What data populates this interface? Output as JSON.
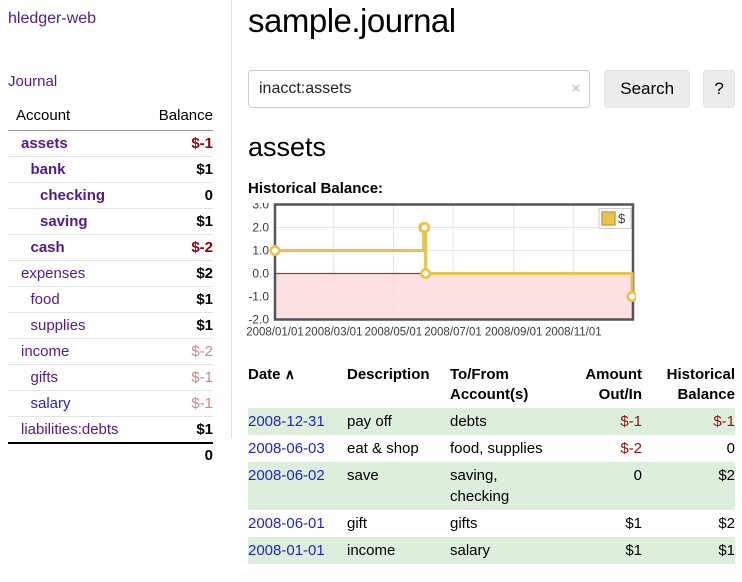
{
  "app": {
    "brand": "hledger-web",
    "nav_journal": "Journal"
  },
  "sidebar": {
    "headers": {
      "account": "Account",
      "balance": "Balance"
    },
    "accounts": [
      {
        "name": "assets",
        "depth": 0,
        "balance": "$-1",
        "emph": true,
        "neg": true,
        "blue": false
      },
      {
        "name": "bank",
        "depth": 1,
        "balance": "$1",
        "emph": true,
        "neg": false,
        "blue": false
      },
      {
        "name": "checking",
        "depth": 2,
        "balance": "0",
        "emph": true,
        "neg": false,
        "blue": false
      },
      {
        "name": "saving",
        "depth": 2,
        "balance": "$1",
        "emph": true,
        "neg": false,
        "blue": false
      },
      {
        "name": "cash",
        "depth": 1,
        "balance": "$-2",
        "emph": true,
        "neg": true,
        "blue": false
      },
      {
        "name": "expenses",
        "depth": 0,
        "balance": "$2",
        "emph": false,
        "neg": false,
        "blue": false
      },
      {
        "name": "food",
        "depth": 1,
        "balance": "$1",
        "emph": false,
        "neg": false,
        "blue": false
      },
      {
        "name": "supplies",
        "depth": 1,
        "balance": "$1",
        "emph": false,
        "neg": false,
        "blue": false
      },
      {
        "name": "income",
        "depth": 0,
        "balance": "$-2",
        "emph": false,
        "neg": true,
        "blue": false
      },
      {
        "name": "gifts",
        "depth": 1,
        "balance": "$-1",
        "emph": false,
        "neg": true,
        "blue": false
      },
      {
        "name": "salary",
        "depth": 1,
        "balance": "$-1",
        "emph": false,
        "neg": true,
        "blue": true
      },
      {
        "name": "liabilities:debts",
        "depth": 0,
        "balance": "$1",
        "emph": false,
        "neg": false,
        "blue": false
      }
    ],
    "total": "0"
  },
  "header": {
    "title": "sample.journal"
  },
  "search": {
    "value": "inacct:assets",
    "clear_icon": "×",
    "search_button": "Search",
    "help_button": "?"
  },
  "account_page": {
    "heading": "assets",
    "chart_label": "Historical Balance:"
  },
  "chart_data": {
    "type": "line",
    "subtype": "step",
    "legend": "$",
    "legend_position": "top-right",
    "series": [
      {
        "name": "$",
        "color": "#e8c24a",
        "points": [
          {
            "date": "2008-01-01",
            "value": 1
          },
          {
            "date": "2008-06-01",
            "value": 2
          },
          {
            "date": "2008-06-02",
            "value": 2
          },
          {
            "date": "2008-06-03",
            "value": 0
          },
          {
            "date": "2008-12-31",
            "value": -1
          }
        ]
      }
    ],
    "x_range": [
      "2008-01-01",
      "2009-01-01"
    ],
    "y_range": [
      -2,
      3
    ],
    "y_tick_labels": [
      "3.0",
      "2.0",
      "1.0",
      "0.0",
      "-1.0",
      "-2.0"
    ],
    "x_tick_labels": [
      "2008/01/01",
      "2008/03/01",
      "2008/05/01",
      "2008/07/01",
      "2008/09/01",
      "2008/11/01"
    ],
    "grid": true,
    "negative_region_color": "#fadcdc",
    "zero_line_color": "#a93434",
    "grid_color": "#e6e6e6",
    "border_color": "#545454"
  },
  "register": {
    "sort_icon": "∧",
    "columns": [
      {
        "label": "Date"
      },
      {
        "label": "Description"
      },
      {
        "label": "To/From Account(s)"
      },
      {
        "label": "Amount Out/In"
      },
      {
        "label": "Historical Balance"
      }
    ],
    "rows": [
      {
        "date": "2008-12-31",
        "description": "pay off",
        "accounts": "debts",
        "amount": "$-1",
        "amount_neg": true,
        "balance": "$-1",
        "balance_neg": true
      },
      {
        "date": "2008-06-03",
        "description": "eat & shop",
        "accounts": "food, supplies",
        "amount": "$-2",
        "amount_neg": true,
        "balance": "0",
        "balance_neg": false
      },
      {
        "date": "2008-06-02",
        "description": "save",
        "accounts": "saving, checking",
        "amount": "0",
        "amount_neg": false,
        "balance": "$2",
        "balance_neg": false
      },
      {
        "date": "2008-06-01",
        "description": "gift",
        "accounts": "gifts",
        "amount": "$1",
        "amount_neg": false,
        "balance": "$2",
        "balance_neg": false
      },
      {
        "date": "2008-01-01",
        "description": "income",
        "accounts": "salary",
        "amount": "$1",
        "amount_neg": false,
        "balance": "$1",
        "balance_neg": false
      }
    ]
  },
  "colors": {
    "link_purple": "#551a8b",
    "link_blue": "#2323cc",
    "negative_strong": "#990000",
    "negative_faded": "#c98888",
    "row_green": "#ddeedd",
    "chart_yellow": "#e8c24a"
  }
}
